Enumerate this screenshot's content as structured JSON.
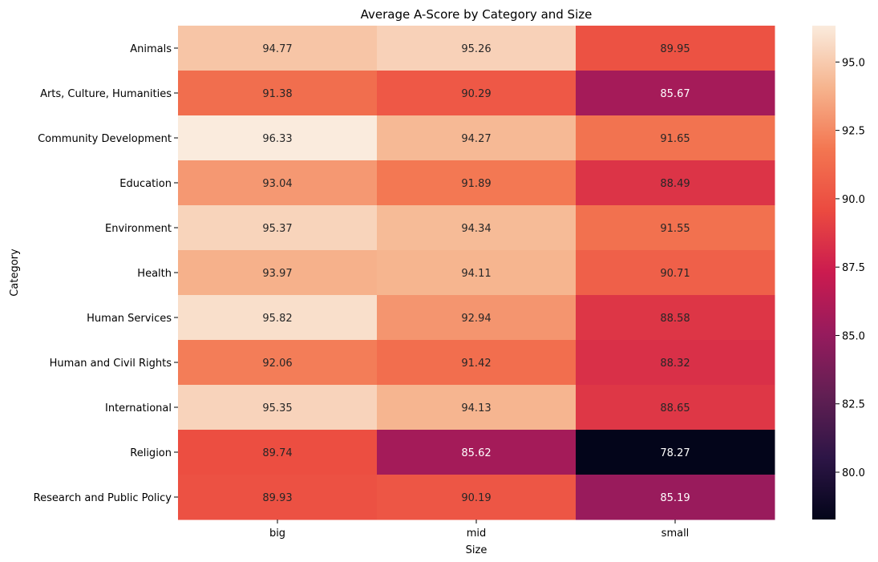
{
  "chart_data": {
    "type": "heatmap",
    "title": "Average A-Score by Category and Size",
    "xlabel": "Size",
    "ylabel": "Category",
    "x_categories": [
      "big",
      "mid",
      "small"
    ],
    "y_categories": [
      "Animals",
      "Arts, Culture, Humanities",
      "Community Development",
      "Education",
      "Environment",
      "Health",
      "Human Services",
      "Human and Civil Rights",
      "International",
      "Religion",
      "Research and Public Policy"
    ],
    "values": [
      [
        94.77,
        95.26,
        89.95
      ],
      [
        91.38,
        90.29,
        85.67
      ],
      [
        96.33,
        94.27,
        91.65
      ],
      [
        93.04,
        91.89,
        88.49
      ],
      [
        95.37,
        94.34,
        91.55
      ],
      [
        93.97,
        94.11,
        90.71
      ],
      [
        95.82,
        92.94,
        88.58
      ],
      [
        92.06,
        91.42,
        88.32
      ],
      [
        95.35,
        94.13,
        88.65
      ],
      [
        89.74,
        85.62,
        78.27
      ],
      [
        89.93,
        90.19,
        85.19
      ]
    ],
    "value_labels": [
      [
        "94.77",
        "95.26",
        "89.95"
      ],
      [
        "91.38",
        "90.29",
        "85.67"
      ],
      [
        "96.33",
        "94.27",
        "91.65"
      ],
      [
        "93.04",
        "91.89",
        "88.49"
      ],
      [
        "95.37",
        "94.34",
        "91.55"
      ],
      [
        "93.97",
        "94.11",
        "90.71"
      ],
      [
        "95.82",
        "92.94",
        "88.58"
      ],
      [
        "92.06",
        "91.42",
        "88.32"
      ],
      [
        "95.35",
        "94.13",
        "88.65"
      ],
      [
        "89.74",
        "85.62",
        "78.27"
      ],
      [
        "89.93",
        "90.19",
        "85.19"
      ]
    ],
    "colorbar": {
      "range": [
        78.27,
        96.33
      ],
      "ticks": [
        80.0,
        82.5,
        85.0,
        87.5,
        90.0,
        92.5,
        95.0
      ],
      "tick_labels": [
        "80.0",
        "82.5",
        "85.0",
        "87.5",
        "90.0",
        "92.5",
        "95.0"
      ],
      "colormap": "rocket"
    },
    "grid": false,
    "legend": "colorbar-right"
  }
}
